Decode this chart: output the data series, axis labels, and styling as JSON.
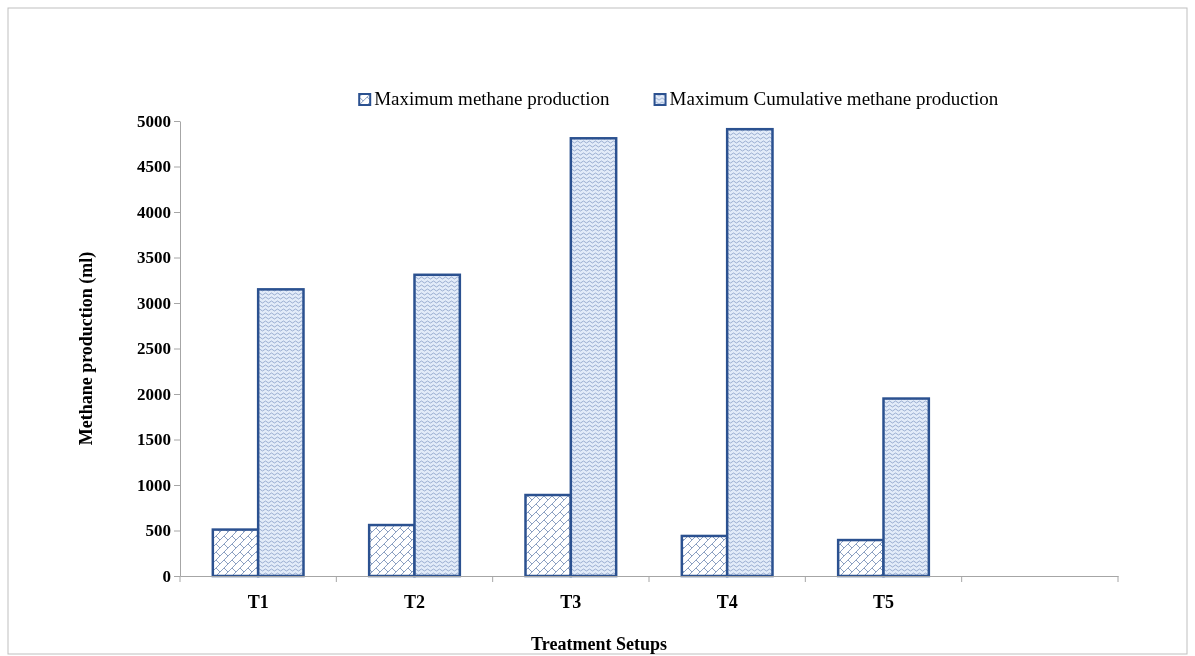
{
  "chart_data": {
    "type": "bar",
    "xlabel": "Treatment Setups",
    "ylabel": "Methane production (ml)",
    "categories": [
      "T1",
      "T2",
      "T3",
      "T4",
      "T5",
      null
    ],
    "series": [
      {
        "name": "Maximum methane production",
        "color": "#2b5190",
        "values": [
          510,
          560,
          890,
          440,
          395,
          null
        ]
      },
      {
        "name": "Maximum Cumulative methane production",
        "color": "#2b5190",
        "values": [
          3150,
          3310,
          4810,
          4910,
          1950,
          null
        ]
      }
    ],
    "ylim": [
      0,
      5000
    ],
    "yticks": [
      0,
      500,
      1000,
      1500,
      2000,
      2500,
      3000,
      3500,
      4000,
      4500,
      5000
    ],
    "grid": false,
    "legend": "top"
  }
}
